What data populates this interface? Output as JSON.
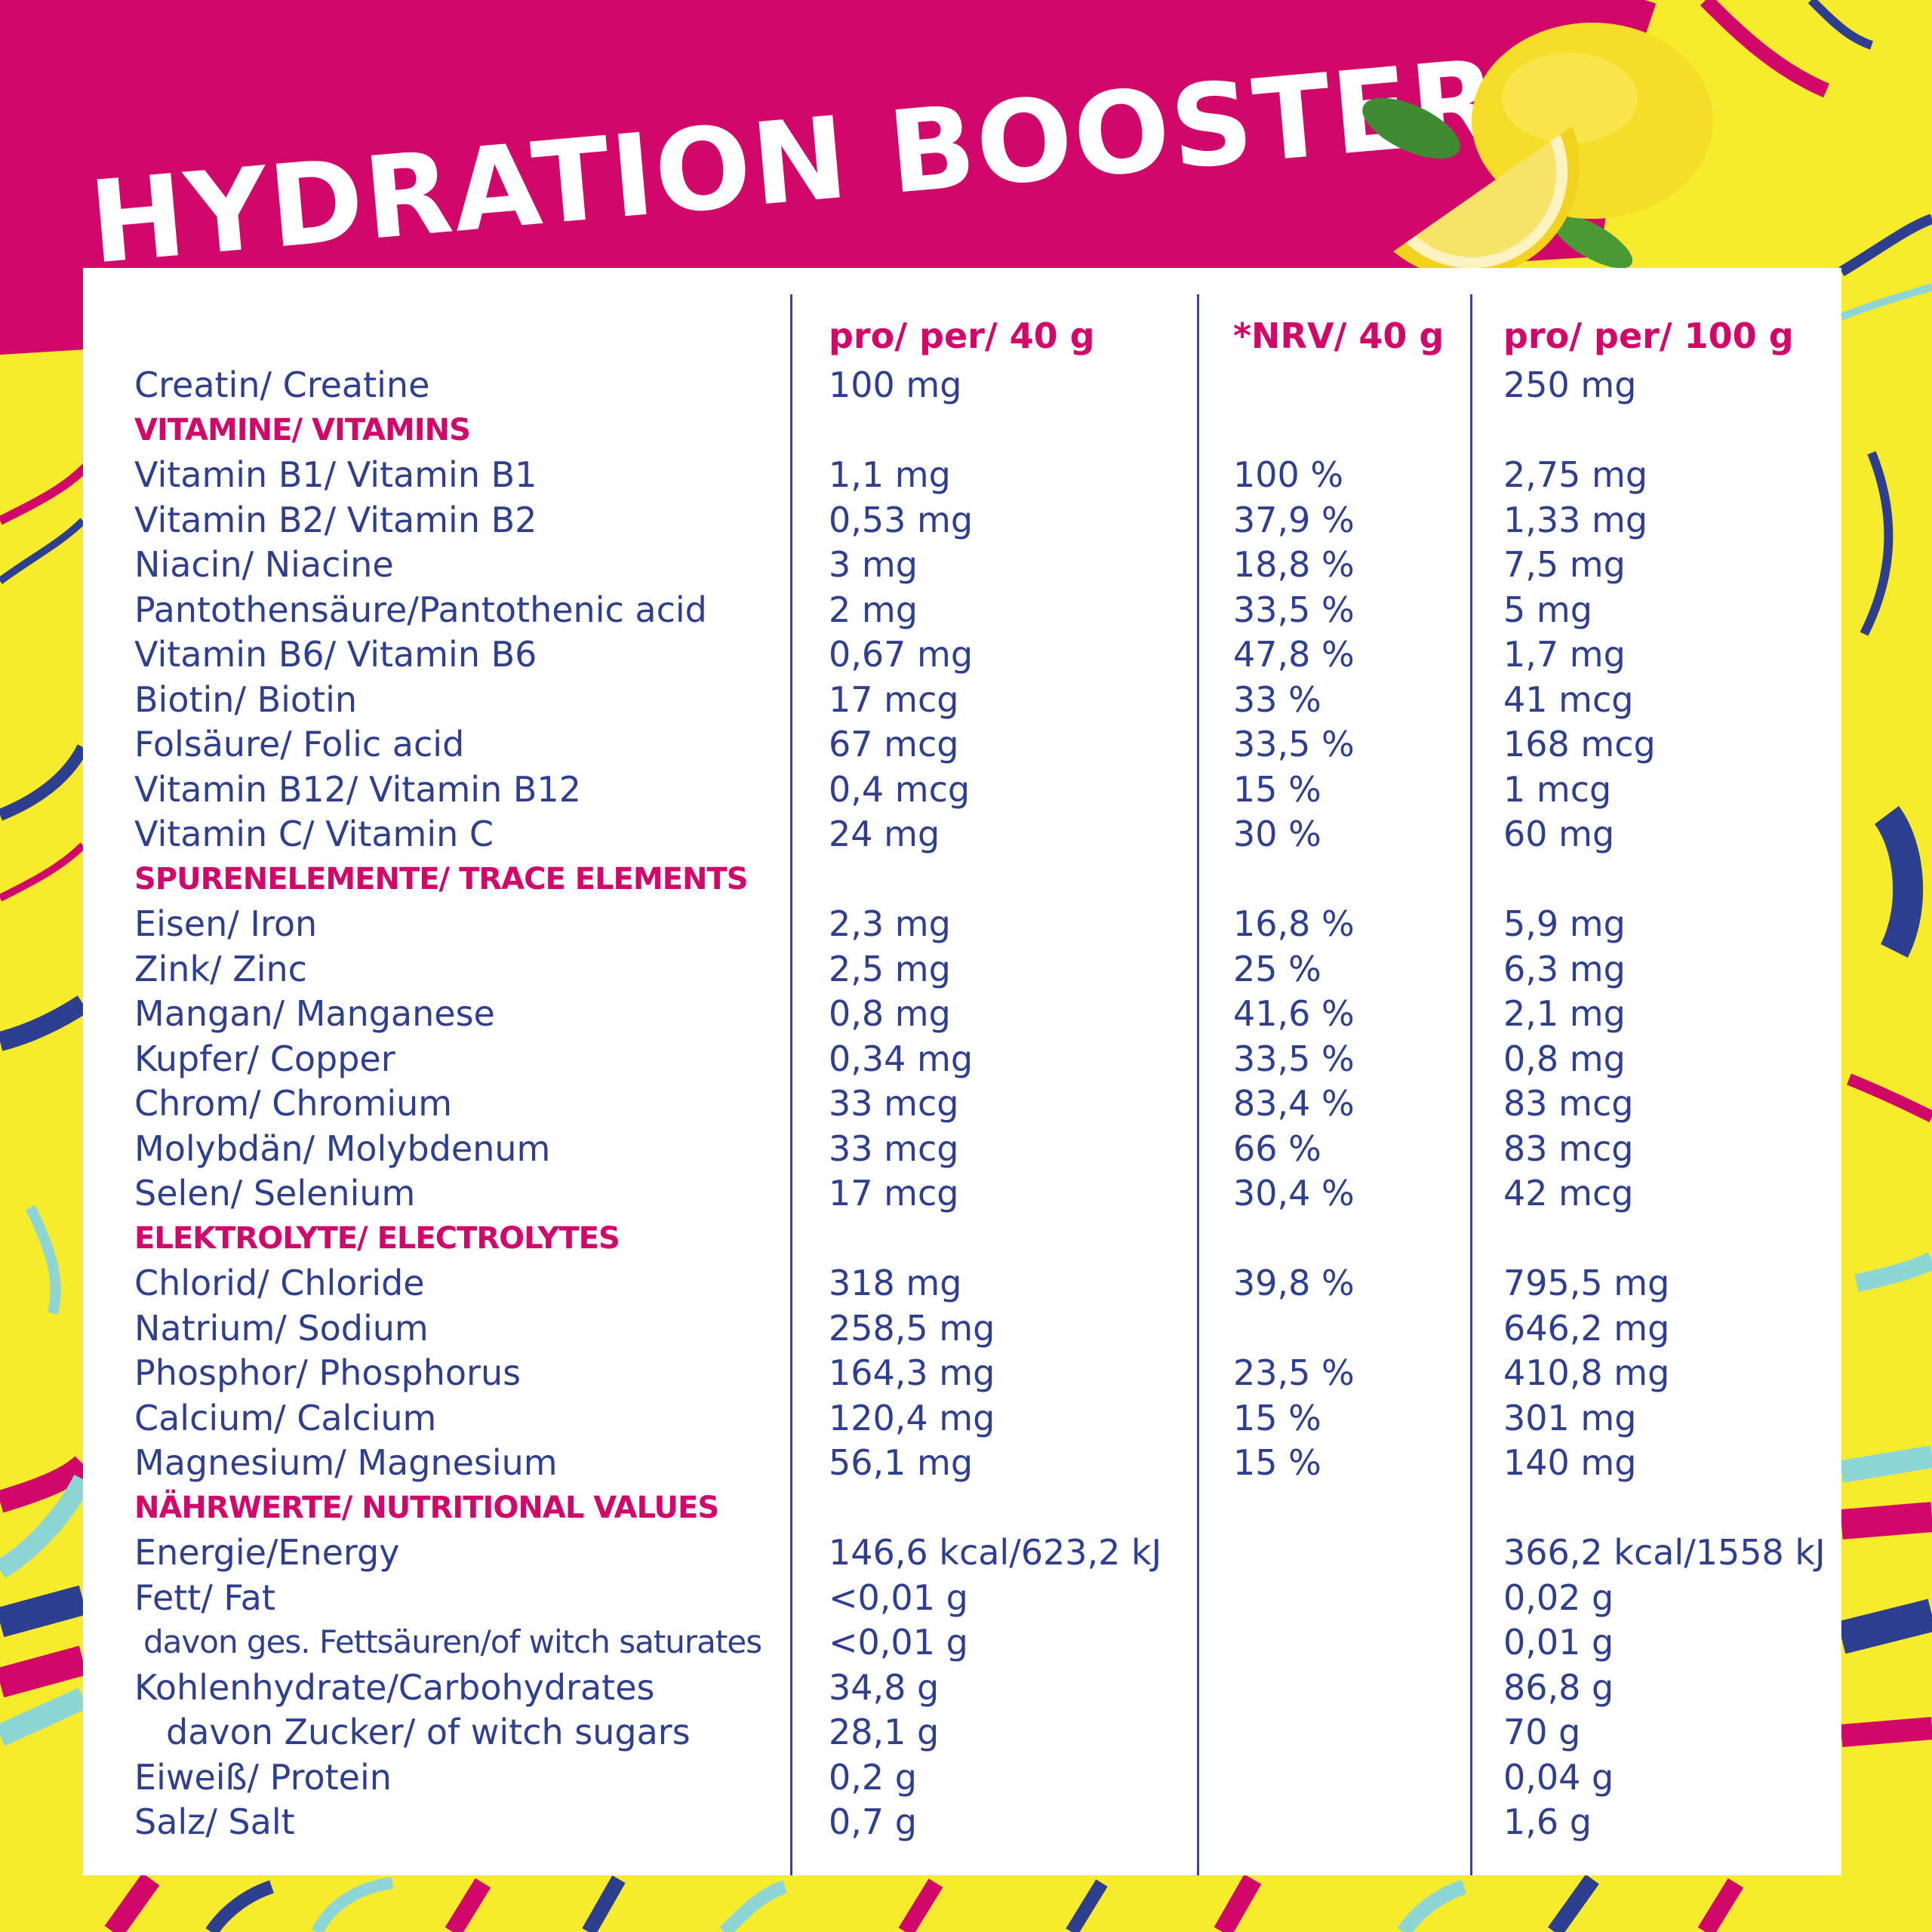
{
  "title": "HYDRATION BOOSTER",
  "colors": {
    "magenta": "#d1086a",
    "navy": "#2e3f8f",
    "yellow": "#f7eb2e",
    "white": "#ffffff",
    "teal": "#8ed6d6"
  },
  "headers": [
    "pro/ per/ 40 g",
    "*NRV/ 40 g",
    "pro/ per/ 100 g"
  ],
  "rows": [
    {
      "name": "Creatin/ Creatine",
      "per40": "100 mg",
      "nrv": "",
      "per100": "250 mg"
    },
    {
      "section": true,
      "name": "VITAMINE/ VITAMINS"
    },
    {
      "name": "Vitamin B1/ Vitamin B1",
      "per40": "1,1 mg",
      "nrv": "100 %",
      "per100": "2,75 mg"
    },
    {
      "name": "Vitamin B2/ Vitamin B2",
      "per40": "0,53 mg",
      "nrv": "37,9 %",
      "per100": "1,33 mg"
    },
    {
      "name": "Niacin/ Niacine",
      "per40": "3 mg",
      "nrv": "18,8 %",
      "per100": "7,5 mg"
    },
    {
      "name": "Pantothensäure/Pantothenic acid",
      "per40": "2 mg",
      "nrv": "33,5 %",
      "per100": "5 mg"
    },
    {
      "name": "Vitamin B6/ Vitamin B6",
      "per40": "0,67 mg",
      "nrv": "47,8 %",
      "per100": "1,7 mg"
    },
    {
      "name": "Biotin/ Biotin",
      "per40": "17 mcg",
      "nrv": "33 %",
      "per100": "41 mcg"
    },
    {
      "name": "Folsäure/ Folic acid",
      "per40": "67 mcg",
      "nrv": "33,5 %",
      "per100": "168 mcg"
    },
    {
      "name": "Vitamin B12/ Vitamin B12",
      "per40": "0,4 mcg",
      "nrv": "15 %",
      "per100": "1 mcg"
    },
    {
      "name": "Vitamin C/ Vitamin C",
      "per40": "24 mg",
      "nrv": "30 %",
      "per100": "60 mg"
    },
    {
      "section": true,
      "name": "SPURENELEMENTE/ TRACE ELEMENTS"
    },
    {
      "name": "Eisen/ Iron",
      "per40": "2,3 mg",
      "nrv": "16,8 %",
      "per100": "5,9 mg"
    },
    {
      "name": "Zink/ Zinc",
      "per40": "2,5 mg",
      "nrv": "25 %",
      "per100": "6,3 mg"
    },
    {
      "name": "Mangan/ Manganese",
      "per40": "0,8 mg",
      "nrv": "41,6 %",
      "per100": "2,1 mg"
    },
    {
      "name": "Kupfer/ Copper",
      "per40": "0,34 mg",
      "nrv": "33,5 %",
      "per100": "0,8 mg"
    },
    {
      "name": "Chrom/ Chromium",
      "per40": "33 mcg",
      "nrv": "83,4 %",
      "per100": "83 mcg"
    },
    {
      "name": "Molybdän/ Molybdenum",
      "per40": "33 mcg",
      "nrv": "66 %",
      "per100": "83 mcg"
    },
    {
      "name": "Selen/ Selenium",
      "per40": "17 mcg",
      "nrv": "30,4 %",
      "per100": "42 mcg"
    },
    {
      "section": true,
      "name": "ELEKTROLYTE/ ELECTROLYTES"
    },
    {
      "name": "Chlorid/ Chloride",
      "per40": "318 mg",
      "nrv": "39,8 %",
      "per100": "795,5 mg"
    },
    {
      "name": "Natrium/ Sodium",
      "per40": "258,5 mg",
      "nrv": "",
      "per100": "646,2 mg"
    },
    {
      "name": "Phosphor/ Phosphorus",
      "per40": "164,3 mg",
      "nrv": "23,5 %",
      "per100": "410,8 mg"
    },
    {
      "name": "Calcium/ Calcium",
      "per40": "120,4 mg",
      "nrv": "15 %",
      "per100": "301 mg"
    },
    {
      "name": "Magnesium/ Magnesium",
      "per40": "56,1 mg",
      "nrv": "15 %",
      "per100": "140 mg"
    },
    {
      "section": true,
      "name": "NÄHRWERTE/ NUTRITIONAL VALUES"
    },
    {
      "name": "Energie/Energy",
      "per40": "146,6 kcal/623,2 kJ",
      "nrv": "",
      "per100": "366,2 kcal/1558 kJ"
    },
    {
      "name": "Fett/ Fat",
      "per40": "<0,01 g",
      "nrv": "",
      "per100": "0,02 g"
    },
    {
      "name": "davon ges. Fettsäuren/of witch saturates",
      "indent": 1,
      "per40": "<0,01 g",
      "nrv": "",
      "per100": "0,01 g"
    },
    {
      "name": "Kohlenhydrate/Carbohydrates",
      "per40": "34,8 g",
      "nrv": "",
      "per100": "86,8 g"
    },
    {
      "name": "davon Zucker/ of witch sugars",
      "indent": 2,
      "per40": "28,1 g",
      "nrv": "",
      "per100": "70 g"
    },
    {
      "name": "Eiweiß/ Protein",
      "per40": "0,2 g",
      "nrv": "",
      "per100": "0,04 g"
    },
    {
      "name": "Salz/ Salt",
      "per40": "0,7 g",
      "nrv": "",
      "per100": "1,6 g"
    }
  ]
}
